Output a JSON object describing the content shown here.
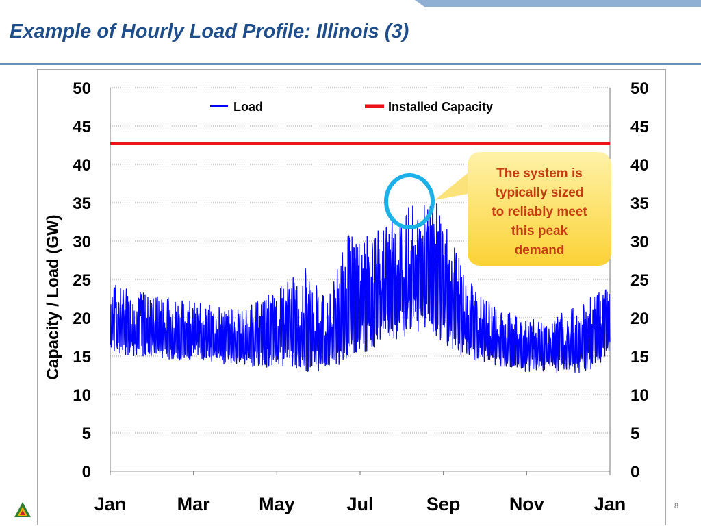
{
  "slide": {
    "title": "Example of Hourly Load Profile:  Illinois (3)",
    "page_number": "8"
  },
  "colors": {
    "title": "#1f4e8a",
    "load_series": "#0000ff",
    "capacity_series": "#e8141a",
    "callout_fill": "#fbd236",
    "callout_circle": "#1ab0e8",
    "header_band": "#8fb0d3"
  },
  "chart_data": {
    "type": "line",
    "title": "",
    "xlabel": "",
    "ylabel": "Capacity / Load (GW)",
    "y2label": "",
    "ylim": [
      0,
      50
    ],
    "yticks": [
      0,
      5,
      10,
      15,
      20,
      25,
      30,
      35,
      40,
      45,
      50
    ],
    "y_tick_labels": [
      "0",
      "5",
      "10",
      "15",
      "20",
      "25",
      "30",
      "35",
      "40",
      "45",
      "50"
    ],
    "x_tick_labels": [
      "Jan",
      "Mar",
      "May",
      "Jul",
      "Sep",
      "Nov",
      "Jan"
    ],
    "grid": "horizontal dotted",
    "legend_position": "top",
    "series": [
      {
        "name": "Load",
        "resolution": "approximate envelope, two readings per month (min/max daily swing)",
        "x": [
          "Jan",
          "Jan",
          "Feb",
          "Feb",
          "Mar",
          "Mar",
          "Apr",
          "Apr",
          "May",
          "May",
          "Jun",
          "Jun",
          "Jul",
          "Jul",
          "Aug",
          "Aug",
          "Sep",
          "Sep",
          "Oct",
          "Oct",
          "Nov",
          "Nov",
          "Dec",
          "Dec"
        ],
        "low": [
          15.5,
          15.0,
          14.8,
          14.5,
          14.5,
          14.0,
          13.8,
          13.5,
          13.5,
          13.0,
          12.8,
          14.5,
          15.5,
          17.0,
          18.0,
          17.5,
          15.0,
          14.0,
          13.5,
          13.0,
          13.0,
          12.5,
          13.0,
          15.0
        ],
        "high": [
          24.5,
          23.5,
          23.0,
          22.5,
          22.0,
          21.5,
          21.0,
          22.5,
          24.5,
          26.5,
          22.0,
          31.5,
          30.5,
          33.0,
          35.0,
          35.0,
          28.0,
          23.0,
          21.0,
          20.0,
          19.5,
          21.0,
          22.5,
          24.0
        ]
      },
      {
        "name": "Installed Capacity",
        "x": [
          "Jan",
          "Jan"
        ],
        "values": [
          42.7,
          42.7
        ]
      }
    ],
    "annotations": [
      {
        "text_lines": [
          "The system is",
          "typically sized",
          "to reliably meet",
          "this peak",
          "demand"
        ],
        "target": "August peak load ~35 GW"
      }
    ]
  }
}
